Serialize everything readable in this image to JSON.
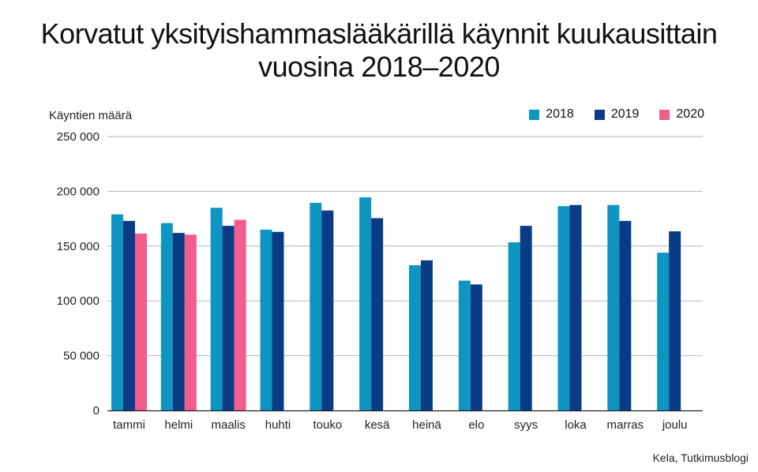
{
  "chart_data": {
    "type": "bar",
    "title_lines": [
      "Korvatut yksityishammaslääkärillä käynnit kuukausittain",
      "vuosina 2018–2020"
    ],
    "ylabel": "Käyntien määrä",
    "xlabel": "",
    "ylim": [
      0,
      250000
    ],
    "yticks": [
      0,
      50000,
      100000,
      150000,
      200000,
      250000
    ],
    "ytick_labels": [
      "0",
      "50 000",
      "100 000",
      "150 000",
      "200 000",
      "250 000"
    ],
    "categories": [
      "tammi",
      "helmi",
      "maalis",
      "huhti",
      "touko",
      "kesä",
      "heinä",
      "elo",
      "syys",
      "loka",
      "marras",
      "joulu"
    ],
    "series": [
      {
        "name": "2018",
        "color": "#0f95c2",
        "values": [
          179000,
          171000,
          185000,
          165000,
          189500,
          194500,
          132500,
          118500,
          153500,
          186500,
          187500,
          144000
        ]
      },
      {
        "name": "2019",
        "color": "#0a3b85",
        "values": [
          173000,
          162000,
          168500,
          163000,
          182500,
          175500,
          137000,
          115000,
          168500,
          187500,
          173000,
          163500
        ]
      },
      {
        "name": "2020",
        "color": "#f45c8c",
        "values": [
          161500,
          160500,
          174000,
          null,
          null,
          null,
          null,
          null,
          null,
          null,
          null,
          null
        ]
      }
    ],
    "grid": true,
    "legend_position": "top-right"
  },
  "source": "Kela, Tutkimusblogi"
}
